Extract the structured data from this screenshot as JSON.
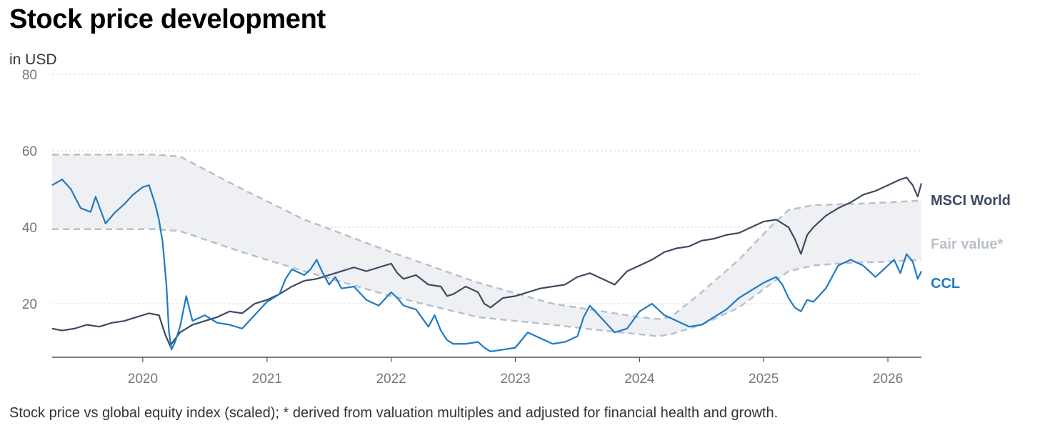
{
  "title": "Stock price development",
  "subtitle": "in USD",
  "footnote": "Stock price vs global equity index (scaled); * derived from valuation multiples and adjusted for financial health and growth.",
  "colors": {
    "msci": "#3d4a61",
    "ccl": "#1e7ac4",
    "fair": "#b9c0ca",
    "fair_fill": "#eef0f3",
    "grid": "#d6d6d6",
    "axis": "#555555"
  },
  "chart_data": {
    "type": "line",
    "title": "Stock price development",
    "ylabel": "in USD",
    "xlim": [
      2019.27,
      2026.27
    ],
    "ylim": [
      6,
      80
    ],
    "yticks": [
      20,
      40,
      60,
      80
    ],
    "xticks": [
      2020,
      2021,
      2022,
      2023,
      2024,
      2025,
      2026
    ],
    "grid": "horizontal dashed",
    "legend": "labels at right end of lines",
    "series": [
      {
        "name": "MSCI World",
        "key": "msci",
        "x": [
          2019.27,
          2019.35,
          2019.45,
          2019.55,
          2019.65,
          2019.75,
          2019.85,
          2019.95,
          2020.05,
          2020.13,
          2020.18,
          2020.22,
          2020.3,
          2020.4,
          2020.5,
          2020.6,
          2020.7,
          2020.8,
          2020.9,
          2021.0,
          2021.1,
          2021.2,
          2021.3,
          2021.4,
          2021.5,
          2021.6,
          2021.7,
          2021.8,
          2021.9,
          2022.0,
          2022.05,
          2022.1,
          2022.2,
          2022.3,
          2022.4,
          2022.45,
          2022.5,
          2022.6,
          2022.7,
          2022.75,
          2022.8,
          2022.9,
          2023.0,
          2023.1,
          2023.2,
          2023.3,
          2023.4,
          2023.5,
          2023.6,
          2023.7,
          2023.8,
          2023.9,
          2024.0,
          2024.1,
          2024.2,
          2024.3,
          2024.4,
          2024.5,
          2024.6,
          2024.7,
          2024.8,
          2024.9,
          2025.0,
          2025.1,
          2025.2,
          2025.25,
          2025.3,
          2025.35,
          2025.4,
          2025.5,
          2025.6,
          2025.7,
          2025.8,
          2025.9,
          2026.0,
          2026.1,
          2026.15,
          2026.2,
          2026.24,
          2026.27
        ],
        "values": [
          13.5,
          13.0,
          13.5,
          14.5,
          14.0,
          15.0,
          15.5,
          16.5,
          17.5,
          17.0,
          12.0,
          9.0,
          12.5,
          14.5,
          15.5,
          16.5,
          18.0,
          17.5,
          20.0,
          21.0,
          22.5,
          24.5,
          26.0,
          26.5,
          27.5,
          28.5,
          29.5,
          28.5,
          29.5,
          30.5,
          28.0,
          26.5,
          27.5,
          25.0,
          24.5,
          22.0,
          22.5,
          24.5,
          23.0,
          20.0,
          19.0,
          21.5,
          22.0,
          23.0,
          24.0,
          24.5,
          25.0,
          27.0,
          28.0,
          26.5,
          25.0,
          28.5,
          30.0,
          31.5,
          33.5,
          34.5,
          35.0,
          36.5,
          37.0,
          38.0,
          38.5,
          40.0,
          41.5,
          42.0,
          40.0,
          37.0,
          33.0,
          38.0,
          40.0,
          43.0,
          45.0,
          46.5,
          48.5,
          49.5,
          51.0,
          52.5,
          53.0,
          51.0,
          48.0,
          51.5
        ]
      },
      {
        "name": "CCL",
        "key": "ccl",
        "x": [
          2019.27,
          2019.35,
          2019.42,
          2019.5,
          2019.58,
          2019.62,
          2019.7,
          2019.78,
          2019.85,
          2019.92,
          2020.0,
          2020.05,
          2020.1,
          2020.13,
          2020.16,
          2020.19,
          2020.21,
          2020.23,
          2020.26,
          2020.3,
          2020.35,
          2020.4,
          2020.5,
          2020.6,
          2020.7,
          2020.8,
          2020.9,
          2021.0,
          2021.1,
          2021.15,
          2021.2,
          2021.3,
          2021.35,
          2021.4,
          2021.45,
          2021.5,
          2021.55,
          2021.6,
          2021.7,
          2021.8,
          2021.9,
          2022.0,
          2022.05,
          2022.1,
          2022.2,
          2022.3,
          2022.35,
          2022.4,
          2022.45,
          2022.5,
          2022.6,
          2022.7,
          2022.75,
          2022.8,
          2022.9,
          2023.0,
          2023.1,
          2023.2,
          2023.3,
          2023.4,
          2023.5,
          2023.55,
          2023.6,
          2023.7,
          2023.8,
          2023.9,
          2024.0,
          2024.1,
          2024.2,
          2024.3,
          2024.4,
          2024.5,
          2024.6,
          2024.7,
          2024.8,
          2024.9,
          2025.0,
          2025.1,
          2025.15,
          2025.2,
          2025.25,
          2025.3,
          2025.35,
          2025.4,
          2025.5,
          2025.6,
          2025.7,
          2025.8,
          2025.9,
          2026.0,
          2026.05,
          2026.1,
          2026.15,
          2026.2,
          2026.24,
          2026.27
        ],
        "values": [
          51.0,
          52.5,
          50.0,
          45.0,
          44.0,
          48.0,
          41.0,
          44.0,
          46.0,
          48.5,
          50.5,
          51.0,
          46.0,
          42.0,
          36.0,
          25.0,
          13.0,
          8.0,
          10.0,
          14.0,
          22.0,
          15.5,
          17.0,
          15.0,
          14.5,
          13.5,
          17.0,
          20.5,
          22.5,
          26.5,
          29.0,
          27.5,
          29.0,
          31.5,
          28.0,
          25.0,
          27.0,
          24.0,
          24.5,
          21.0,
          19.5,
          23.0,
          21.5,
          19.5,
          18.5,
          14.0,
          17.0,
          13.0,
          10.5,
          9.5,
          9.5,
          10.0,
          8.5,
          7.5,
          8.0,
          8.5,
          12.5,
          11.0,
          9.5,
          10.0,
          11.5,
          16.5,
          19.5,
          16.0,
          12.5,
          13.5,
          18.0,
          20.0,
          17.0,
          15.5,
          14.0,
          14.5,
          16.5,
          18.5,
          21.5,
          23.5,
          25.5,
          27.0,
          25.0,
          21.5,
          19.0,
          18.0,
          21.0,
          20.5,
          24.0,
          30.0,
          31.5,
          30.0,
          27.0,
          30.0,
          31.5,
          28.0,
          33.0,
          31.0,
          26.5,
          28.5
        ]
      }
    ],
    "band": {
      "name": "Fair value*",
      "key": "fair",
      "x": [
        2019.27,
        2019.7,
        2020.1,
        2020.3,
        2020.8,
        2021.3,
        2022.0,
        2022.7,
        2023.3,
        2023.7,
        2024.0,
        2024.15,
        2024.25,
        2024.5,
        2024.8,
        2025.05,
        2025.2,
        2025.4,
        2025.6,
        2025.8,
        2026.0,
        2026.27
      ],
      "upper": [
        59.0,
        59.0,
        59.0,
        58.5,
        50.0,
        42.0,
        33.5,
        25.5,
        20.0,
        18.0,
        16.5,
        16.0,
        16.5,
        23.0,
        31.5,
        40.0,
        44.5,
        45.8,
        46.0,
        46.2,
        46.5,
        47.0
      ],
      "lower": [
        39.5,
        39.5,
        39.5,
        39.0,
        33.5,
        28.5,
        22.0,
        16.5,
        14.5,
        13.0,
        12.0,
        11.5,
        12.0,
        14.5,
        19.0,
        25.0,
        28.5,
        30.0,
        30.5,
        30.8,
        31.0,
        31.5
      ]
    }
  }
}
